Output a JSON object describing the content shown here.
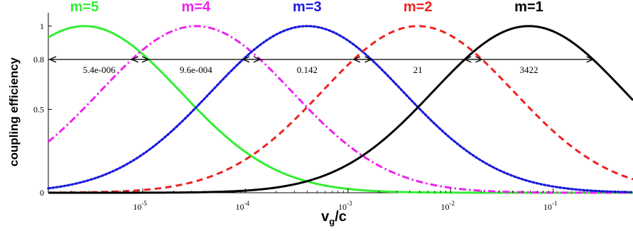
{
  "chart_data": {
    "type": "line",
    "title": "",
    "xlabel": "v_g/c",
    "xlabel_main": "v",
    "xlabel_sub": "g",
    "xlabel_rest": "/c",
    "ylabel": "coupling efficiency",
    "x_scale": "log",
    "xlim": [
      1.2e-06,
      0.6
    ],
    "ylim": [
      0,
      1.08
    ],
    "grid": false,
    "x_ticks": [
      {
        "value": 1e-05,
        "base": "10",
        "exp": "-5"
      },
      {
        "value": 0.0001,
        "base": "10",
        "exp": "-4"
      },
      {
        "value": 0.001,
        "base": "10",
        "exp": "-3"
      },
      {
        "value": 0.01,
        "base": "10",
        "exp": "-2"
      },
      {
        "value": 0.1,
        "base": "10",
        "exp": "-1"
      }
    ],
    "y_ticks": [
      {
        "value": 0,
        "label": "0"
      },
      {
        "value": 0.5,
        "label": "0.5"
      },
      {
        "value": 0.8,
        "label": "0.8"
      },
      {
        "value": 1,
        "label": "1"
      }
    ],
    "series": [
      {
        "name": "m=5",
        "color": "#33ee33",
        "dash": "solid",
        "peak_x": 2.7e-06,
        "width_decades": 1.25,
        "annotation": "5.4e-006",
        "annotation_x": 1.2e-05
      },
      {
        "name": "m=4",
        "color": "#ee22ee",
        "dash": "dashdot",
        "peak_x": 3.3e-05,
        "width_decades": 1.25,
        "annotation": "9.6e-004",
        "annotation_x": 2.6e-05
      },
      {
        "name": "m=3",
        "color": "#1a1add",
        "dash": "dotted",
        "peak_x": 0.0004,
        "width_decades": 1.25,
        "annotation": "0.142",
        "annotation_x": 0.0004
      },
      {
        "name": "m=2",
        "color": "#ee2222",
        "dash": "dashed",
        "peak_x": 0.0048,
        "width_decades": 1.25,
        "annotation": "21",
        "annotation_x": 0.0048
      },
      {
        "name": "m=1",
        "color": "#000000",
        "dash": "solid",
        "peak_x": 0.058,
        "width_decades": 1.25,
        "annotation": "3422",
        "annotation_x": 0.058
      }
    ],
    "width_arrow_level": 0.8
  }
}
